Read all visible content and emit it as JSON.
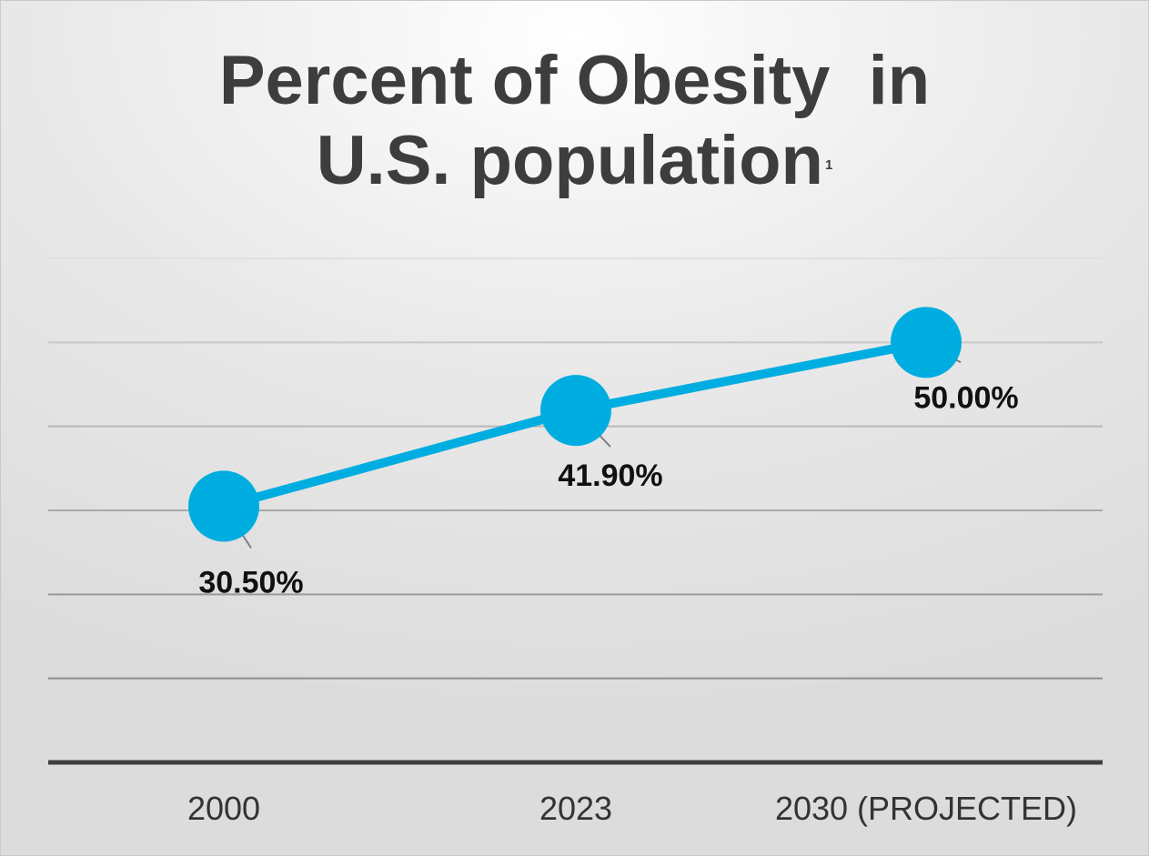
{
  "chart_data": {
    "type": "line",
    "title": "Percent of Obesity  in",
    "title_line2": "U.S. population",
    "title_footnote": "1",
    "categories": [
      "2000",
      "2023",
      "2030 (PROJECTED)"
    ],
    "values": [
      30.5,
      41.9,
      50.0
    ],
    "data_labels": [
      "30.50%",
      "41.90%",
      "50.00%"
    ],
    "ylim": [
      0,
      60
    ],
    "gridlines": true,
    "xlabel": "",
    "ylabel": "",
    "legend": "none"
  },
  "colors": {
    "series": "#00ADE0",
    "title": "#3D3D3D",
    "axis": "#3F3F3F",
    "leader_line": "#7F7F7F"
  }
}
